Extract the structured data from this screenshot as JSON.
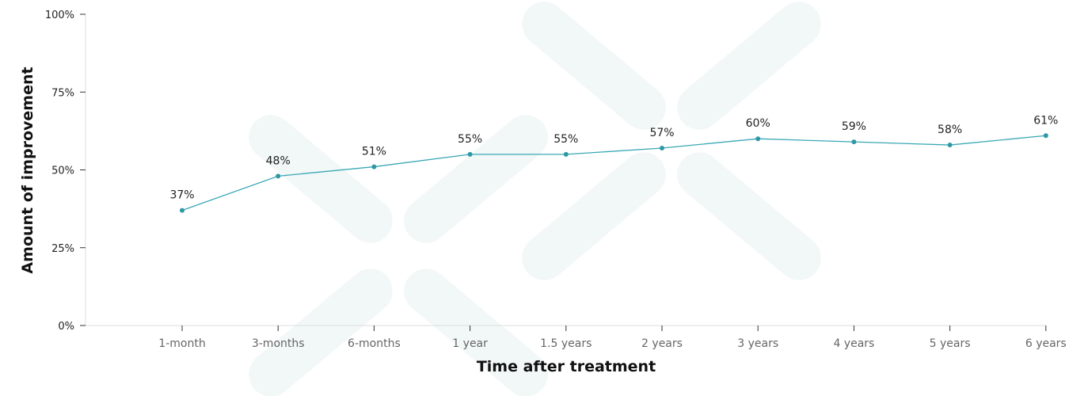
{
  "chart_data": {
    "type": "line",
    "title": "",
    "xlabel": "Time after treatment",
    "ylabel": "Amount of improvement",
    "categories": [
      "1-month",
      "3-months",
      "6-months",
      "1 year",
      "1.5 years",
      "2 years",
      "3 years",
      "4 years",
      "5 years",
      "6 years"
    ],
    "series": [
      {
        "values": [
          37,
          48,
          51,
          55,
          55,
          57,
          60,
          59,
          58,
          61
        ],
        "data_labels": [
          "37%",
          "48%",
          "51%",
          "55%",
          "55%",
          "57%",
          "60%",
          "59%",
          "58%",
          "61%"
        ]
      }
    ],
    "ylim": [
      0,
      100
    ],
    "y_ticks": [
      0,
      25,
      50,
      75,
      100
    ],
    "y_tick_labels": [
      "0%",
      "25%",
      "50%",
      "75%",
      "100%"
    ],
    "grid": false,
    "legend": "none",
    "colors": {
      "line": "#3aa8b5",
      "point": "#2f98a6",
      "watermark": "#eef7f6"
    }
  }
}
